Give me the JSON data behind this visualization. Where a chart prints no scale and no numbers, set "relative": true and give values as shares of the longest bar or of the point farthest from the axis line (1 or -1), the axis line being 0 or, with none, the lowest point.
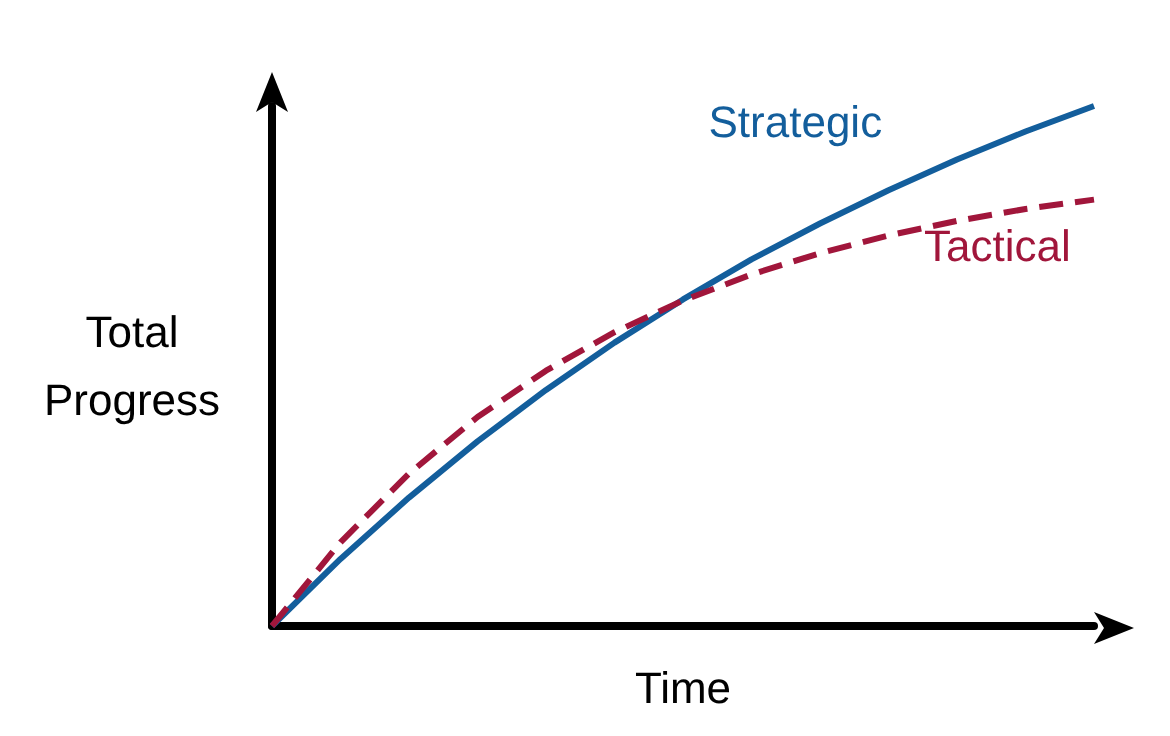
{
  "chart_data": {
    "type": "line",
    "relative": true,
    "xlabel": "Time",
    "ylabel": "Total\nProgress",
    "legend": false,
    "grid": false,
    "categories": [
      null,
      null,
      null,
      null,
      null,
      null,
      null,
      null,
      null,
      null,
      null,
      null,
      null
    ],
    "series": [
      {
        "name": "Strategic",
        "color": "#135e9c",
        "line_style": "solid",
        "values": [
          0,
          0.129,
          0.247,
          0.355,
          0.454,
          0.545,
          0.628,
          0.705,
          0.774,
          0.838,
          0.897,
          0.951,
          1
        ]
      },
      {
        "name": "Tactical",
        "color": "#a1163b",
        "line_style": "dashed",
        "values": [
          0,
          0.161,
          0.293,
          0.402,
          0.491,
          0.565,
          0.626,
          0.676,
          0.717,
          0.751,
          0.779,
          0.802,
          0.82
        ]
      }
    ]
  }
}
